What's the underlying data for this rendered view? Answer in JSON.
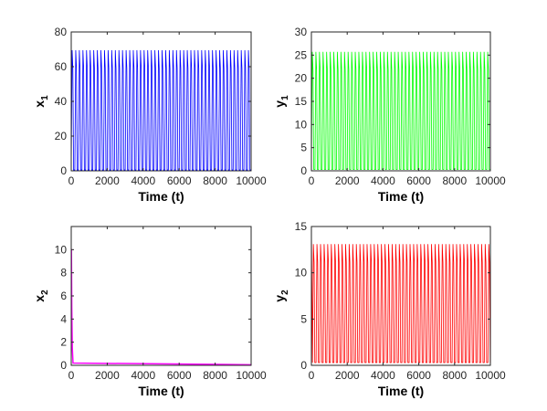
{
  "chart_data": [
    {
      "type": "line",
      "title": "",
      "xlabel": "Time (t)",
      "ylabel": "x",
      "ylabel_subscript": "1",
      "xlim": [
        0,
        10000
      ],
      "ylim": [
        0,
        80
      ],
      "xticks": [
        0,
        2000,
        4000,
        6000,
        8000,
        10000
      ],
      "yticks": [
        0,
        20,
        40,
        60,
        80
      ],
      "grid": false,
      "series": [
        {
          "color": "#0000ff",
          "pattern": "periodic",
          "period": 200,
          "min": 0.5,
          "max": 69.5,
          "x_start": 0,
          "x_end": 10000
        }
      ]
    },
    {
      "type": "line",
      "title": "",
      "xlabel": "Time (t)",
      "ylabel": "y",
      "ylabel_subscript": "1",
      "xlim": [
        0,
        10000
      ],
      "ylim": [
        0,
        30
      ],
      "xticks": [
        0,
        2000,
        4000,
        6000,
        8000,
        10000
      ],
      "yticks": [
        0,
        5,
        10,
        15,
        20,
        25,
        30
      ],
      "grid": false,
      "series": [
        {
          "color": "#00ff00",
          "pattern": "periodic",
          "period": 200,
          "min": 0.3,
          "max": 25.7,
          "x_start": 0,
          "x_end": 10000
        }
      ]
    },
    {
      "type": "line",
      "title": "",
      "xlabel": "Time (t)",
      "ylabel": "x",
      "ylabel_subscript": "2",
      "xlim": [
        0,
        10000
      ],
      "ylim": [
        0,
        12
      ],
      "xticks": [
        0,
        2000,
        4000,
        6000,
        8000,
        10000
      ],
      "yticks": [
        0,
        2,
        4,
        6,
        8,
        10
      ],
      "grid": false,
      "series": [
        {
          "color": "#ff00ff",
          "pattern": "decay",
          "x": [
            0,
            10,
            30,
            60,
            100,
            10000
          ],
          "y": [
            10,
            10,
            5,
            1.5,
            0.2,
            0.05
          ]
        }
      ]
    },
    {
      "type": "line",
      "title": "",
      "xlabel": "Time (t)",
      "ylabel": "y",
      "ylabel_subscript": "2",
      "xlim": [
        0,
        10000
      ],
      "ylim": [
        0,
        15
      ],
      "xticks": [
        0,
        2000,
        4000,
        6000,
        8000,
        10000
      ],
      "yticks": [
        0,
        5,
        10,
        15
      ],
      "grid": false,
      "series": [
        {
          "color": "#ff0000",
          "pattern": "periodic",
          "period": 200,
          "min": 0.3,
          "max": 13.1,
          "x_start": 0,
          "x_end": 10000,
          "initial_peak": 15
        }
      ]
    }
  ]
}
